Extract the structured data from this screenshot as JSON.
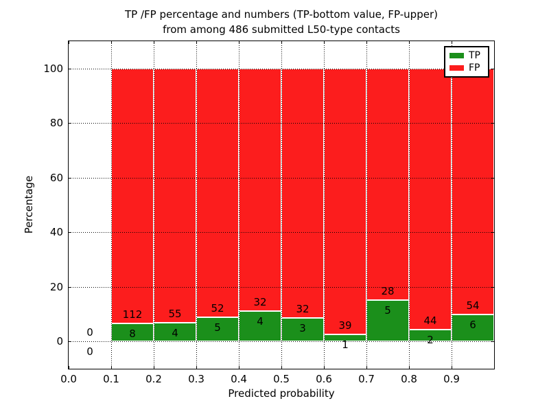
{
  "chart_data": {
    "type": "bar",
    "stacked": true,
    "percentage": true,
    "title_line1": "TP /FP percentage and numbers (TP-bottom value, FP-upper)",
    "title_line2": "from among 486 submitted L50-type contacts",
    "xlabel": "Predicted probability",
    "ylabel": "Percentage",
    "xlim": [
      0.0,
      1.0
    ],
    "ylim": [
      -10,
      110
    ],
    "grid": "dotted",
    "legend_position": "upper-right",
    "xtick_labels": [
      "0.0",
      "0.1",
      "0.2",
      "0.3",
      "0.4",
      "0.5",
      "0.6",
      "0.7",
      "0.8",
      "0.9"
    ],
    "ytick_labels": [
      "0",
      "20",
      "40",
      "60",
      "80",
      "100"
    ],
    "series": [
      {
        "name": "TP",
        "color": "#1b8f1b"
      },
      {
        "name": "FP",
        "color": "#fc1d1d"
      }
    ],
    "bins": [
      {
        "x0": 0.0,
        "x1": 0.1,
        "tp": 0,
        "fp": 0
      },
      {
        "x0": 0.1,
        "x1": 0.2,
        "tp": 8,
        "fp": 112
      },
      {
        "x0": 0.2,
        "x1": 0.3,
        "tp": 4,
        "fp": 55
      },
      {
        "x0": 0.3,
        "x1": 0.4,
        "tp": 5,
        "fp": 52
      },
      {
        "x0": 0.4,
        "x1": 0.5,
        "tp": 4,
        "fp": 32
      },
      {
        "x0": 0.5,
        "x1": 0.6,
        "tp": 3,
        "fp": 32
      },
      {
        "x0": 0.6,
        "x1": 0.7,
        "tp": 1,
        "fp": 39
      },
      {
        "x0": 0.7,
        "x1": 0.8,
        "tp": 5,
        "fp": 28
      },
      {
        "x0": 0.8,
        "x1": 0.9,
        "tp": 2,
        "fp": 44
      },
      {
        "x0": 0.9,
        "x1": 1.0,
        "tp": 6,
        "fp": 54
      }
    ]
  }
}
